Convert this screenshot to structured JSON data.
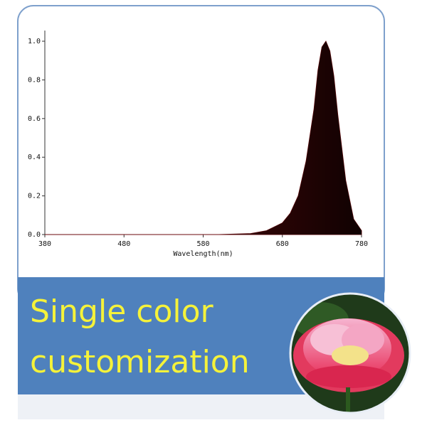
{
  "chart_data": {
    "type": "area",
    "x": [
      380,
      600,
      640,
      660,
      680,
      690,
      700,
      710,
      720,
      725,
      730,
      735,
      740,
      745,
      750,
      760,
      770,
      780
    ],
    "values": [
      0,
      0,
      0.005,
      0.02,
      0.06,
      0.11,
      0.2,
      0.38,
      0.65,
      0.85,
      0.97,
      1.0,
      0.95,
      0.82,
      0.62,
      0.28,
      0.08,
      0.02
    ],
    "color": "#6b0a0c",
    "xlabel": "Wavelength(nm)",
    "xlim": [
      380,
      780
    ],
    "xticks": [
      380,
      480,
      580,
      680,
      780
    ],
    "ylim": [
      0,
      1.0
    ],
    "yticks": [
      {
        "value": 0,
        "label": "0.0"
      },
      {
        "value": 0.2,
        "label": "0.2"
      },
      {
        "value": 0.4,
        "label": "0.4"
      },
      {
        "value": 0.6,
        "label": "0.6"
      },
      {
        "value": 0.8,
        "label": "0.8"
      },
      {
        "value": 1.0,
        "label": "1.0"
      }
    ]
  },
  "caption": [
    "Single color",
    "customization"
  ]
}
